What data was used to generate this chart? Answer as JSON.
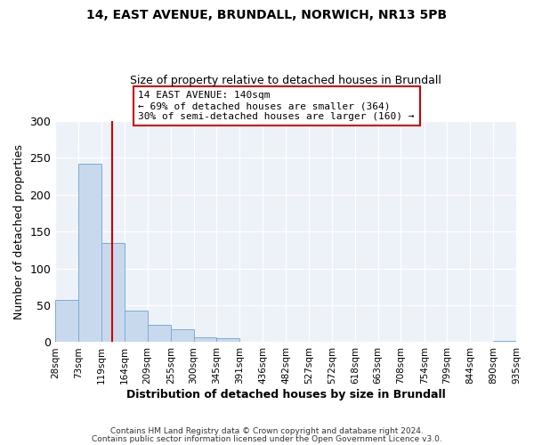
{
  "title1": "14, EAST AVENUE, BRUNDALL, NORWICH, NR13 5PB",
  "title2": "Size of property relative to detached houses in Brundall",
  "xlabel": "Distribution of detached houses by size in Brundall",
  "ylabel": "Number of detached properties",
  "bin_edges": [
    28,
    73,
    119,
    164,
    209,
    255,
    300,
    345,
    391,
    436,
    482,
    527,
    572,
    618,
    663,
    708,
    754,
    799,
    844,
    890,
    935
  ],
  "bin_counts": [
    57,
    242,
    134,
    43,
    24,
    17,
    7,
    5,
    1,
    0,
    0,
    0,
    0,
    0,
    0,
    0,
    0,
    0,
    0,
    2
  ],
  "bar_color": "#c8d9ee",
  "bar_edge_color": "#7aadd4",
  "property_size": 140,
  "vline_color": "#cc0000",
  "annotation_title": "14 EAST AVENUE: 140sqm",
  "annotation_line1": "← 69% of detached houses are smaller (364)",
  "annotation_line2": "30% of semi-detached houses are larger (160) →",
  "annotation_box_edge": "#cc0000",
  "ylim": [
    0,
    300
  ],
  "yticks": [
    0,
    50,
    100,
    150,
    200,
    250,
    300
  ],
  "tick_labels": [
    "28sqm",
    "73sqm",
    "119sqm",
    "164sqm",
    "209sqm",
    "255sqm",
    "300sqm",
    "345sqm",
    "391sqm",
    "436sqm",
    "482sqm",
    "527sqm",
    "572sqm",
    "618sqm",
    "663sqm",
    "708sqm",
    "754sqm",
    "799sqm",
    "844sqm",
    "890sqm",
    "935sqm"
  ],
  "footer1": "Contains HM Land Registry data © Crown copyright and database right 2024.",
  "footer2": "Contains public sector information licensed under the Open Government Licence v3.0.",
  "bg_color": "#ffffff",
  "plot_bg_color": "#edf1f8"
}
